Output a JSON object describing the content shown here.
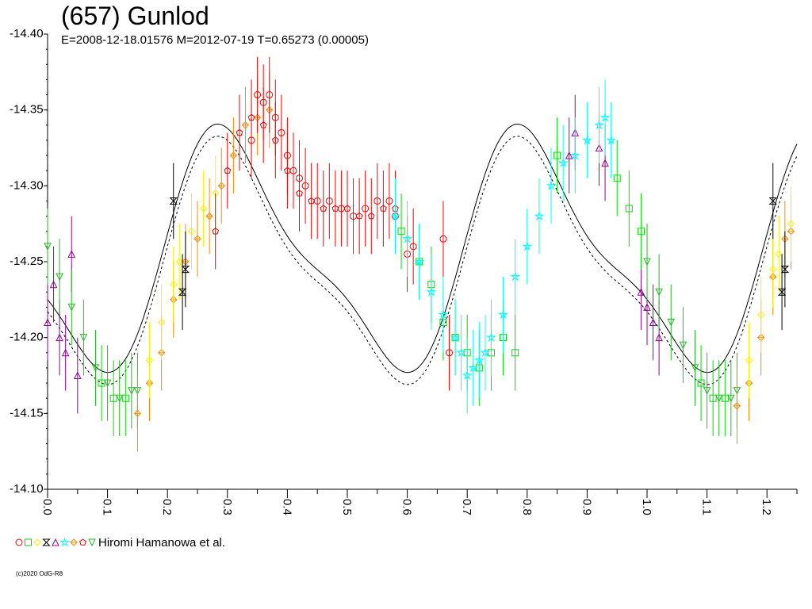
{
  "header": {
    "title": "(657) Gunlod",
    "subtitle": "E=2008-12-18.01576    M=2012-07-19    T=0.65273 (0.00005)"
  },
  "legend": {
    "label": "Hiromi Hamanowa et al.",
    "markers": [
      {
        "shape": "circle",
        "color": "#ff0000"
      },
      {
        "shape": "square",
        "color": "#00dd00"
      },
      {
        "shape": "diamond",
        "color": "#ffee00"
      },
      {
        "shape": "bowtie",
        "color": "#000000"
      },
      {
        "shape": "triangle-up",
        "color": "#990099"
      },
      {
        "shape": "star",
        "color": "#00ffff"
      },
      {
        "shape": "diamond-cross",
        "color": "#ff8800"
      },
      {
        "shape": "pentagon",
        "color": "#ee0000"
      },
      {
        "shape": "triangle-down",
        "color": "#22bb22"
      }
    ]
  },
  "copyright": "(c)2020 OdG-R8",
  "chart_data": {
    "type": "scatter",
    "title": "(657) Gunlod",
    "xlabel": "",
    "ylabel": "",
    "xlim": [
      0.0,
      1.25
    ],
    "ylim": [
      -14.1,
      -14.4
    ],
    "y_inverted": true,
    "x_ticks": [
      0.0,
      0.1,
      0.2,
      0.3,
      0.4,
      0.5,
      0.6,
      0.7,
      0.8,
      0.9,
      1.0,
      1.1,
      1.2
    ],
    "x_tick_labels": [
      "0.0",
      "0.1",
      "0.2",
      "0.3",
      "0.4",
      "0.5",
      "0.6",
      "0.7",
      "0.8",
      "0.9",
      "1.0",
      "1.1",
      "1.2"
    ],
    "y_ticks": [
      -14.1,
      -14.15,
      -14.2,
      -14.25,
      -14.3,
      -14.35,
      -14.4
    ],
    "y_tick_labels": [
      "-14.10",
      "-14.15",
      "-14.20",
      "-14.25",
      "-14.30",
      "-14.35",
      "-14.40"
    ],
    "grid": false,
    "legend_position": "bottom-left",
    "error_bar": 0.025,
    "series": [
      {
        "color": "#990099",
        "marker": "triangle-up",
        "x": [
          0.0,
          0.01,
          0.02,
          0.03,
          0.04,
          0.05,
          0.87,
          0.88,
          0.92,
          0.93,
          0.99,
          1.0,
          1.01,
          1.02
        ],
        "y": [
          -14.21,
          -14.235,
          -14.2,
          -14.19,
          -14.255,
          -14.175,
          -14.32,
          -14.335,
          -14.325,
          -14.315,
          -14.23,
          -14.22,
          -14.21,
          -14.2
        ]
      },
      {
        "color": "#22bb22",
        "marker": "triangle-down",
        "x": [
          0.0,
          0.02,
          0.04,
          0.06,
          0.08,
          0.1,
          0.12,
          0.14,
          0.15,
          1.0,
          1.02,
          1.04,
          1.06,
          1.08,
          1.1,
          1.12,
          1.14,
          1.15
        ],
        "y": [
          -14.26,
          -14.24,
          -14.22,
          -14.2,
          -14.18,
          -14.17,
          -14.16,
          -14.165,
          -14.165,
          -14.25,
          -14.23,
          -14.21,
          -14.195,
          -14.18,
          -14.165,
          -14.16,
          -14.16,
          -14.165
        ]
      },
      {
        "color": "#00dd00",
        "marker": "square",
        "x": [
          0.09,
          0.11,
          0.13,
          0.59,
          0.62,
          0.64,
          0.66,
          0.68,
          0.7,
          0.72,
          0.74,
          0.76,
          0.78,
          0.85,
          0.95,
          0.97,
          0.99,
          1.09,
          1.11,
          1.13
        ],
        "y": [
          -14.17,
          -14.16,
          -14.16,
          -14.27,
          -14.25,
          -14.235,
          -14.21,
          -14.2,
          -14.19,
          -14.18,
          -14.19,
          -14.2,
          -14.19,
          -14.32,
          -14.305,
          -14.285,
          -14.27,
          -14.17,
          -14.16,
          -14.16
        ]
      },
      {
        "color": "#ff8800",
        "marker": "diamond-cross",
        "x": [
          0.15,
          0.17,
          0.19,
          0.21,
          0.23,
          0.25,
          0.27,
          0.29,
          0.31,
          0.33,
          0.35,
          0.37,
          1.15,
          1.17,
          1.19,
          1.21,
          1.23,
          1.24
        ],
        "y": [
          -14.15,
          -14.17,
          -14.19,
          -14.225,
          -14.25,
          -14.265,
          -14.28,
          -14.3,
          -14.32,
          -14.34,
          -14.345,
          -14.35,
          -14.155,
          -14.17,
          -14.2,
          -14.24,
          -14.265,
          -14.27
        ]
      },
      {
        "color": "#ffee00",
        "marker": "diamond",
        "x": [
          0.17,
          0.19,
          0.21,
          0.22,
          0.24,
          0.26,
          0.28,
          1.17,
          1.19,
          1.21,
          1.22,
          1.24
        ],
        "y": [
          -14.185,
          -14.21,
          -14.235,
          -14.25,
          -14.27,
          -14.285,
          -14.295,
          -14.185,
          -14.215,
          -14.245,
          -14.255,
          -14.275
        ]
      },
      {
        "color": "#ee0000",
        "marker": "pentagon",
        "x": [
          0.28,
          0.3,
          0.32,
          0.34,
          0.36,
          0.38,
          0.4,
          0.42,
          0.44,
          0.46,
          0.48,
          0.5,
          0.52,
          0.54,
          0.56,
          0.58
        ],
        "y": [
          -14.27,
          -14.31,
          -14.335,
          -14.345,
          -14.34,
          -14.33,
          -14.31,
          -14.295,
          -14.29,
          -14.285,
          -14.285,
          -14.285,
          -14.28,
          -14.28,
          -14.285,
          -14.285
        ]
      },
      {
        "color": "#ff0000",
        "marker": "circle",
        "x": [
          0.34,
          0.35,
          0.36,
          0.37,
          0.38,
          0.39,
          0.4,
          0.41,
          0.42,
          0.43,
          0.45,
          0.47,
          0.49,
          0.51,
          0.53,
          0.55,
          0.57,
          0.58,
          0.6,
          0.61,
          0.66,
          0.67
        ],
        "y": [
          -14.33,
          -14.36,
          -14.355,
          -14.36,
          -14.345,
          -14.335,
          -14.32,
          -14.31,
          -14.305,
          -14.3,
          -14.29,
          -14.29,
          -14.285,
          -14.28,
          -14.285,
          -14.29,
          -14.29,
          -14.28,
          -14.255,
          -14.26,
          -14.265,
          -14.19
        ]
      },
      {
        "color": "#00ffff",
        "marker": "star",
        "x": [
          0.58,
          0.6,
          0.62,
          0.64,
          0.66,
          0.68,
          0.69,
          0.7,
          0.71,
          0.72,
          0.73,
          0.74,
          0.76,
          0.78,
          0.8,
          0.82,
          0.84,
          0.86,
          0.88,
          0.9,
          0.92,
          0.93,
          0.94
        ],
        "y": [
          -14.28,
          -14.265,
          -14.25,
          -14.23,
          -14.215,
          -14.2,
          -14.19,
          -14.175,
          -14.18,
          -14.185,
          -14.19,
          -14.2,
          -14.215,
          -14.24,
          -14.26,
          -14.28,
          -14.3,
          -14.315,
          -14.32,
          -14.33,
          -14.34,
          -14.345,
          -14.33
        ]
      },
      {
        "color": "#000000",
        "marker": "bowtie",
        "x": [
          0.21,
          0.23,
          0.225,
          1.21,
          1.23,
          1.225
        ],
        "y": [
          -14.29,
          -14.245,
          -14.23,
          -14.29,
          -14.245,
          -14.23
        ]
      }
    ]
  }
}
